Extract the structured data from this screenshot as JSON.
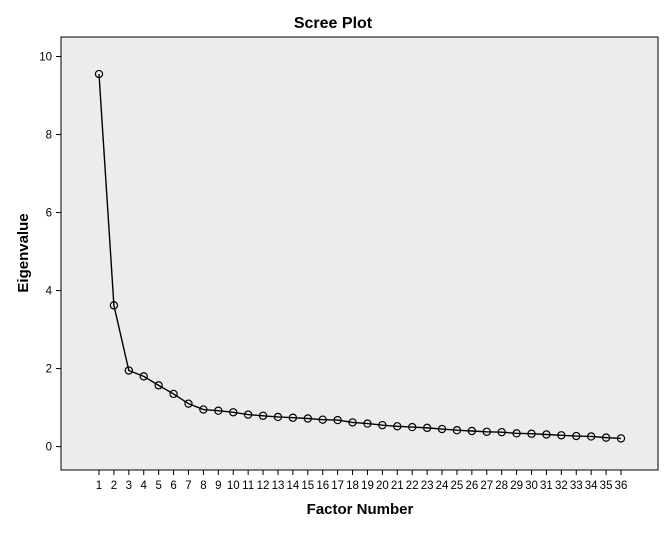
{
  "chart_data": {
    "type": "line",
    "title": "Scree Plot",
    "xlabel": "Factor Number",
    "ylabel": "Eigenvalue",
    "x": [
      1,
      2,
      3,
      4,
      5,
      6,
      7,
      8,
      9,
      10,
      11,
      12,
      13,
      14,
      15,
      16,
      17,
      18,
      19,
      20,
      21,
      22,
      23,
      24,
      25,
      26,
      27,
      28,
      29,
      30,
      31,
      32,
      33,
      34,
      35,
      36
    ],
    "series": [
      {
        "values": [
          9.55,
          3.62,
          1.95,
          1.8,
          1.57,
          1.35,
          1.1,
          0.95,
          0.92,
          0.88,
          0.82,
          0.79,
          0.76,
          0.74,
          0.72,
          0.69,
          0.68,
          0.62,
          0.59,
          0.55,
          0.52,
          0.5,
          0.48,
          0.45,
          0.42,
          0.4,
          0.38,
          0.37,
          0.34,
          0.33,
          0.31,
          0.29,
          0.27,
          0.26,
          0.23,
          0.21
        ]
      }
    ],
    "ylim": [
      -0.6,
      10.5
    ],
    "yticks": [
      0,
      2,
      4,
      6,
      8,
      10
    ],
    "grid": false,
    "marker": "open-circle"
  }
}
